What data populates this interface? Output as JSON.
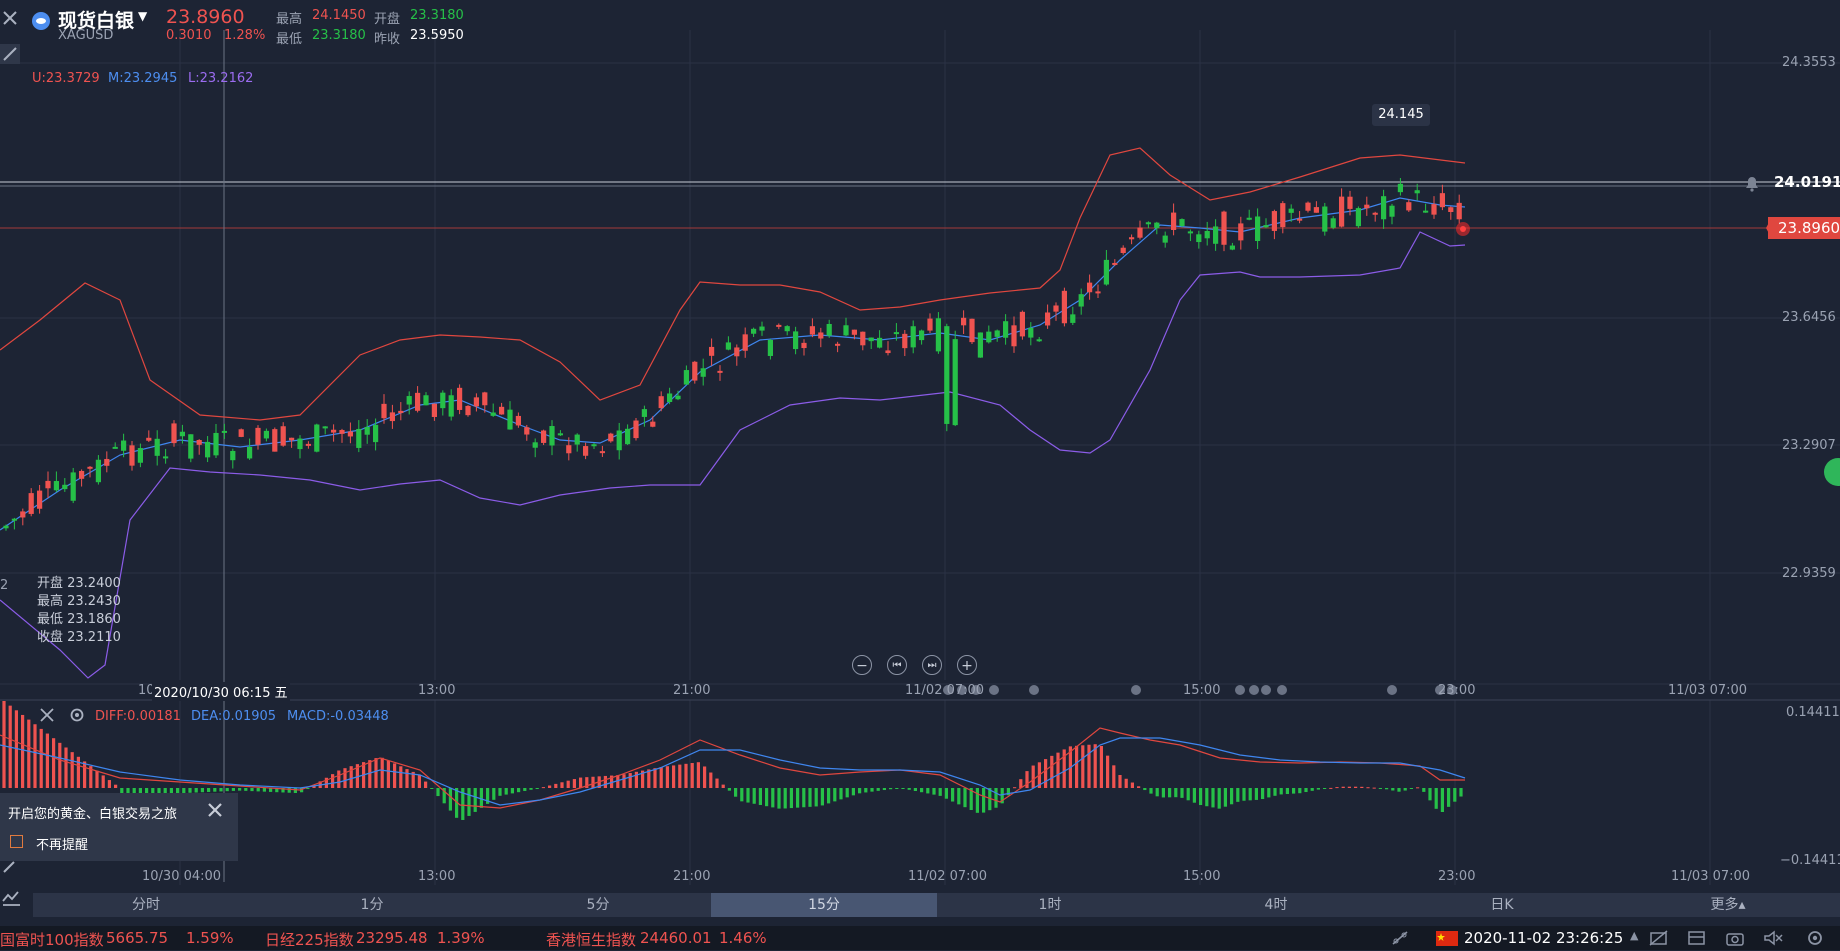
{
  "header": {
    "title": "现货白银",
    "symbol": "XAGUSD",
    "price": "23.8960",
    "change": "0.3010",
    "change_pct": "1.28%",
    "high_label": "最高",
    "high": "24.1450",
    "open_label": "开盘",
    "open": "23.3180",
    "low_label": "最低",
    "low": "23.3180",
    "prev_close_label": "昨收",
    "prev_close": "23.5950"
  },
  "boll": {
    "upper": "U:23.3729",
    "middle": "M:23.2945",
    "lower": "L:23.2162"
  },
  "y_axis": [
    "24.3553",
    "24.0191",
    "23.8960",
    "23.6456",
    "23.2907",
    "22.9359"
  ],
  "peak_label": "24.145",
  "alert_price": "24.0191",
  "current_price": "23.8960",
  "ohlc_box": {
    "open": "开盘 23.2400",
    "high": "最高 23.2430",
    "low": "最低 23.1860",
    "close": "收盘 23.2110"
  },
  "crosshair_date": "2020/10/30 06:15 五",
  "crosshair_partial": "10",
  "left_edge_label": "2",
  "time_axis_main": [
    "13:00",
    "21:00",
    "11/02 07:00",
    "15:00",
    "23:00",
    "11/03 07:00"
  ],
  "macd": {
    "diff": "DIFF:0.00181",
    "dea": "DEA:0.01905",
    "macd": "MACD:-0.03448",
    "top": "0.14411",
    "bottom": "−0.14411"
  },
  "time_axis_sub": [
    "10/30 04:00",
    "13:00",
    "21:00",
    "11/02 07:00",
    "15:00",
    "23:00",
    "11/03 07:00"
  ],
  "popup": {
    "title": "开启您的黄金、白银交易之旅",
    "checkbox": "不再提醒"
  },
  "tabs": [
    {
      "label": "分时",
      "active": false
    },
    {
      "label": "1分",
      "active": false
    },
    {
      "label": "5分",
      "active": false
    },
    {
      "label": "15分",
      "active": true
    },
    {
      "label": "1时",
      "active": false
    },
    {
      "label": "4时",
      "active": false
    },
    {
      "label": "日K",
      "active": false
    },
    {
      "label": "更多▴",
      "active": false
    }
  ],
  "ticker": [
    {
      "name": "国富时100指数",
      "value": "5665.75",
      "pct": "1.59%"
    },
    {
      "name": "日经225指数",
      "value": "23295.48",
      "pct": "1.39%"
    },
    {
      "name": "香港恒生指数",
      "value": "24460.01",
      "pct": "1.46%"
    }
  ],
  "datetime": "2020-11-02 23:26:25",
  "colors": {
    "bg": "#1d2434",
    "up": "#ef5350",
    "down": "#26c048",
    "mid": "#4d8ef0",
    "lower": "#9b6cf0"
  }
}
